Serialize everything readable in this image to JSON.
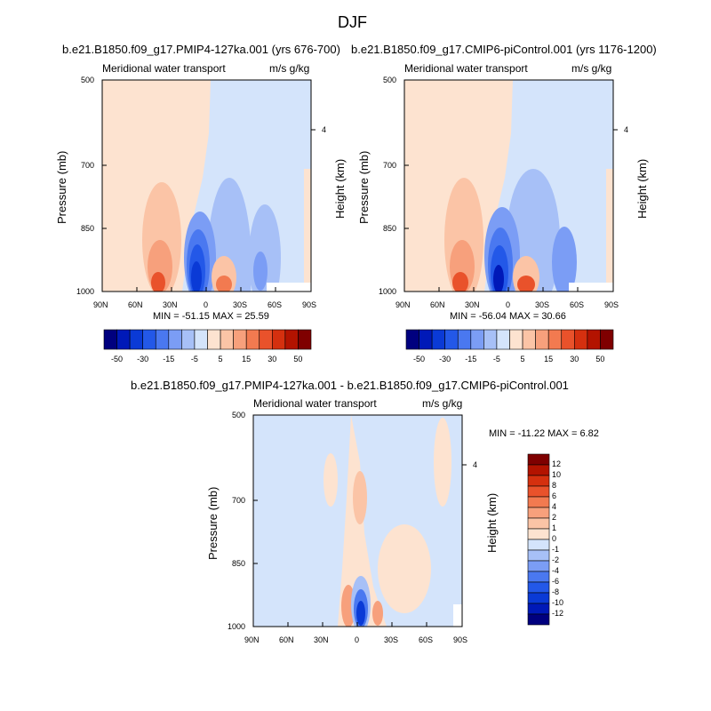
{
  "figure": {
    "title": "DJF"
  },
  "panels": {
    "left": {
      "title": "b.e21.B1850.f09_g17.PMIP4-127ka.001 (yrs 676-700)",
      "left_label": "Meridional water transport",
      "right_label": "m/s g/kg",
      "ylabel": "Pressure (mb)",
      "ylabel_right": "Height (km)",
      "stats": "MIN = -51.15  MAX =  25.59"
    },
    "right": {
      "title": "b.e21.B1850.f09_g17.CMIP6-piControl.001 (yrs 1176-1200)",
      "left_label": "Meridional water transport",
      "right_label": "m/s g/kg",
      "ylabel": "Pressure (mb)",
      "ylabel_right": "Height (km)",
      "stats": "MIN = -56.04  MAX =  30.66"
    },
    "diff": {
      "title": "b.e21.B1850.f09_g17.PMIP4-127ka.001 - b.e21.B1850.f09_g17.CMIP6-piControl.001",
      "left_label": "Meridional water transport",
      "right_label": "m/s g/kg",
      "ylabel": "Pressure (mb)",
      "ylabel_right": "Height (km)",
      "stats": "MIN = -11.22  MAX =   6.82"
    }
  },
  "axes": {
    "x_ticks": [
      "90N",
      "60N",
      "30N",
      "0",
      "30S",
      "60S",
      "90S"
    ],
    "y_ticks": [
      "500",
      "700",
      "850",
      "1000"
    ],
    "y_tick_values": [
      500,
      700,
      850,
      1000
    ],
    "height_tick": "4"
  },
  "colorbar_top": {
    "labels": [
      "-50",
      "-30",
      "-15",
      "-5",
      "5",
      "15",
      "30",
      "50"
    ],
    "colors": [
      "#00007f",
      "#0019b8",
      "#0a3ad6",
      "#2358e8",
      "#4a78f0",
      "#7b9df5",
      "#a7c0f7",
      "#d4e4fb",
      "#fde3d0",
      "#fbc4a6",
      "#f7a07c",
      "#f27a50",
      "#e9522b",
      "#d5300f",
      "#b31300",
      "#7f0000"
    ]
  },
  "colorbar_diff": {
    "labels": [
      "12",
      "10",
      "8",
      "6",
      "4",
      "2",
      "1",
      "0",
      "-1",
      "-2",
      "-4",
      "-6",
      "-8",
      "-10",
      "-12"
    ],
    "colors": [
      "#7f0000",
      "#b31300",
      "#d5300f",
      "#e9522b",
      "#f27a50",
      "#f7a07c",
      "#fbc4a6",
      "#fde3d0",
      "#d4e4fb",
      "#a7c0f7",
      "#7b9df5",
      "#4a78f0",
      "#2358e8",
      "#0a3ad6",
      "#0019b8",
      "#00007f"
    ]
  },
  "chart_data": [
    {
      "type": "heatmap",
      "title": "b.e21.B1850.f09_g17.PMIP4-127ka.001 (yrs 676-700)",
      "xlabel": "",
      "ylabel": "Pressure (mb)",
      "x_categories": [
        "90N",
        "60N",
        "30N",
        "0",
        "30S",
        "60S",
        "90S"
      ],
      "y_range": [
        1000,
        500
      ],
      "min": -51.15,
      "max": 25.59,
      "units": "m/s g/kg"
    },
    {
      "type": "heatmap",
      "title": "b.e21.B1850.f09_g17.CMIP6-piControl.001 (yrs 1176-1200)",
      "xlabel": "",
      "ylabel": "Pressure (mb)",
      "x_categories": [
        "90N",
        "60N",
        "30N",
        "0",
        "30S",
        "60S",
        "90S"
      ],
      "y_range": [
        1000,
        500
      ],
      "min": -56.04,
      "max": 30.66,
      "units": "m/s g/kg"
    },
    {
      "type": "heatmap",
      "title": "b.e21.B1850.f09_g17.PMIP4-127ka.001 - b.e21.B1850.f09_g17.CMIP6-piControl.001",
      "xlabel": "",
      "ylabel": "Pressure (mb)",
      "x_categories": [
        "90N",
        "60N",
        "30N",
        "0",
        "30S",
        "60S",
        "90S"
      ],
      "y_range": [
        1000,
        500
      ],
      "min": -11.22,
      "max": 6.82,
      "units": "m/s g/kg"
    }
  ]
}
